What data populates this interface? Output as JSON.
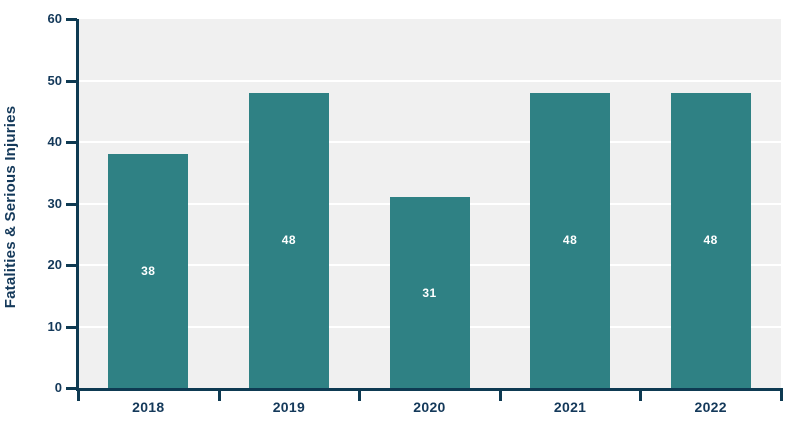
{
  "chart_data": {
    "type": "bar",
    "title": "",
    "categories": [
      "2018",
      "2019",
      "2020",
      "2021",
      "2022"
    ],
    "values": [
      38,
      48,
      31,
      48,
      48
    ],
    "bar_labels": [
      "38",
      "48",
      "31",
      "48",
      "48"
    ],
    "xlabel": "",
    "ylabel": "Fatalities & Serious Injuries",
    "ylim": [
      0,
      60
    ],
    "yticks": [
      0,
      10,
      20,
      30,
      40,
      50,
      60
    ],
    "grid": "horizontal-white-lines",
    "legend": "none",
    "colors": {
      "bar": "#2f8184",
      "bar_value_text": "#ffffff",
      "axis": "#0e3a52",
      "tick_text": "#14395a",
      "plot_background": "#f0f0f0",
      "gridline": "#ffffff",
      "page_background": "#ffffff"
    }
  }
}
